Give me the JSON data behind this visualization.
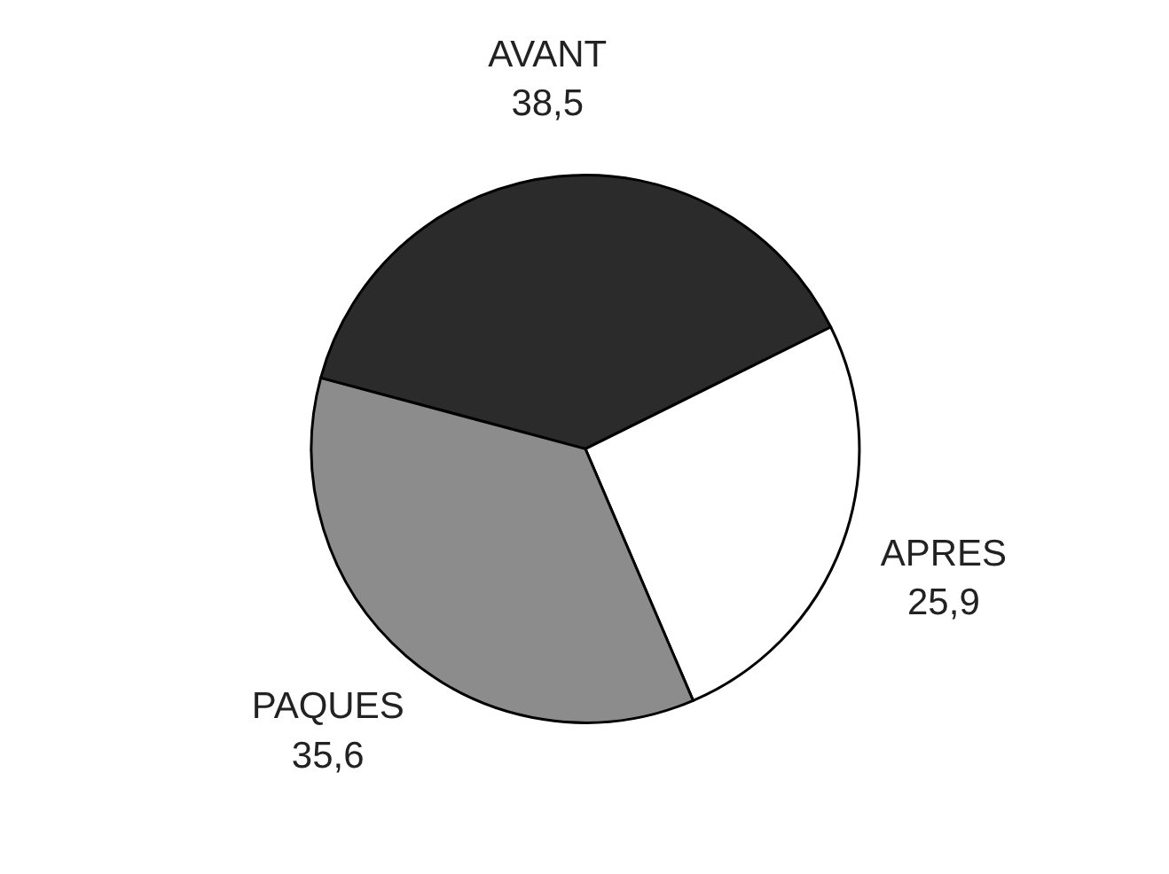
{
  "chart_data": {
    "type": "pie",
    "categories": [
      "AVANT",
      "APRES",
      "PAQUES"
    ],
    "values": [
      38.5,
      25.9,
      35.6
    ],
    "colors": [
      "#2b2b2b",
      "#ffffff",
      "#8c8c8c"
    ],
    "value_labels": [
      "38,5",
      "25,9",
      "35,6"
    ]
  }
}
